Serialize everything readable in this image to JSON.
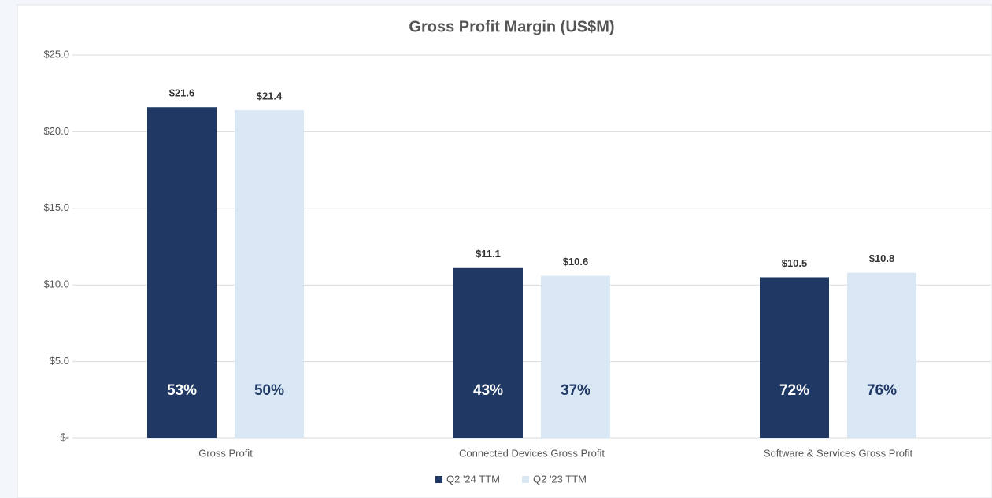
{
  "chart_data": {
    "type": "bar",
    "title": "Gross Profit Margin (US$M)",
    "categories": [
      "Gross Profit",
      "Connected Devices Gross Profit",
      "Software & Services Gross Profit"
    ],
    "series": [
      {
        "name": "Q2 '24 TTM",
        "color": "#1f3864",
        "values": [
          21.6,
          11.1,
          10.5
        ],
        "value_labels": [
          "$21.6",
          "$11.1",
          "$10.5"
        ],
        "margins": [
          53,
          43,
          72
        ],
        "margin_labels": [
          "53%",
          "43%",
          "72%"
        ]
      },
      {
        "name": "Q2 '23 TTM",
        "color": "#dae8f6",
        "values": [
          21.4,
          10.6,
          10.8
        ],
        "value_labels": [
          "$21.4",
          "$10.6",
          "$10.8"
        ],
        "margins": [
          50,
          37,
          76
        ],
        "margin_labels": [
          "50%",
          "37%",
          "76%"
        ]
      }
    ],
    "ylim": [
      0,
      25
    ],
    "yticks": [
      {
        "value": 0,
        "label": "$-"
      },
      {
        "value": 5,
        "label": "$5.0"
      },
      {
        "value": 10,
        "label": "$10.0"
      },
      {
        "value": 15,
        "label": "$15.0"
      },
      {
        "value": 20,
        "label": "$20.0"
      },
      {
        "value": 25,
        "label": "$25.0"
      }
    ],
    "grid": true,
    "legend": "bottom"
  }
}
